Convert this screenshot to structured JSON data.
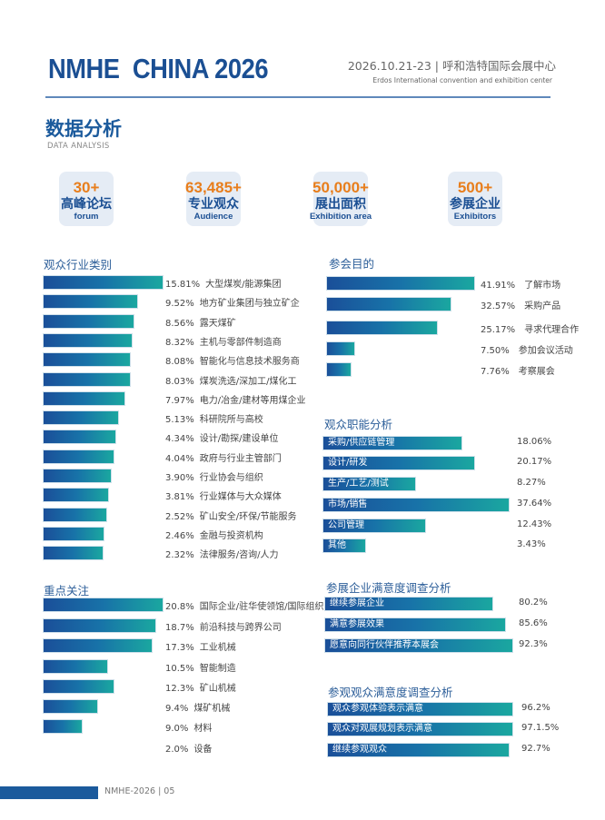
{
  "header": {
    "brand": "NMHE  CHINA 2026",
    "date_venue": "2026.10.21-23 | 呼和浩特国际会展中心",
    "venue_en": "Erdos International convention and exhibition center"
  },
  "section": {
    "title": "数据分析",
    "subtitle": "DATA ANALYSIS"
  },
  "stats": [
    {
      "value": "30+",
      "cn": "高峰论坛",
      "en": "forum",
      "icon": "podium-icon"
    },
    {
      "value": "63,485+",
      "cn": "专业观众",
      "en": "Audience",
      "icon": "people-icon"
    },
    {
      "value": "50,000+",
      "cn": "展出面积",
      "en": "Exhibition area",
      "icon": "floor-area-icon"
    },
    {
      "value": "500+",
      "cn": "参展企业",
      "en": "Exhibitors",
      "icon": "building-icon"
    }
  ],
  "industry": {
    "title": "观众行业类别",
    "items": [
      {
        "pct": "15.81%",
        "label": "大型煤炭/能源集团"
      },
      {
        "pct": "9.52%",
        "label": "地方矿业集团与独立矿企"
      },
      {
        "pct": "8.56%",
        "label": "露天煤矿"
      },
      {
        "pct": "8.32%",
        "label": "主机与零部件制造商"
      },
      {
        "pct": "8.08%",
        "label": "智能化与信息技术服务商"
      },
      {
        "pct": "8.03%",
        "label": "煤炭洗选/深加工/煤化工"
      },
      {
        "pct": "7.97%",
        "label": "电力/冶金/建材等用煤企业"
      },
      {
        "pct": "5.13%",
        "label": "科研院所与高校"
      },
      {
        "pct": "4.34%",
        "label": "设计/勘探/建设单位"
      },
      {
        "pct": "4.04%",
        "label": "政府与行业主管部门"
      },
      {
        "pct": "3.90%",
        "label": "行业协会与组织"
      },
      {
        "pct": "3.81%",
        "label": "行业媒体与大众媒体"
      },
      {
        "pct": "2.52%",
        "label": "矿山安全/环保/节能服务"
      },
      {
        "pct": "2.46%",
        "label": "金融与投资机构"
      },
      {
        "pct": "2.32%",
        "label": "法律服务/咨询/人力"
      }
    ]
  },
  "focus": {
    "title": "重点关注",
    "items": [
      {
        "pct": "20.8%",
        "label": "国际企业/驻华使领馆/国际组织"
      },
      {
        "pct": "18.7%",
        "label": "前沿科技与跨界公司"
      },
      {
        "pct": "17.3%",
        "label": "工业机械"
      },
      {
        "pct": "10.5%",
        "label": "智能制造"
      },
      {
        "pct": "12.3%",
        "label": "矿山机械"
      },
      {
        "pct": "9.4%",
        "label": "煤矿机械"
      },
      {
        "pct": "9.0%",
        "label": "材料"
      },
      {
        "pct": "2.0%",
        "label": "设备"
      }
    ]
  },
  "purpose": {
    "title": "参会目的",
    "items": [
      {
        "pct": "41.91%",
        "label": "了解市场"
      },
      {
        "pct": "32.57%",
        "label": "采购产品"
      },
      {
        "pct": "25.17%",
        "label": "寻求代理合作"
      },
      {
        "pct": "7.50%",
        "label": "参加会议活动"
      },
      {
        "pct": "7.76%",
        "label": "考察展会"
      }
    ]
  },
  "roles": {
    "title": "观众职能分析",
    "items": [
      {
        "pct": "18.06%",
        "label": "采购/供应链管理"
      },
      {
        "pct": "20.17%",
        "label": "设计/研发"
      },
      {
        "pct": "8.27%",
        "label": "生产/工艺/测试"
      },
      {
        "pct": "37.64%",
        "label": "市场/销售"
      },
      {
        "pct": "12.43%",
        "label": "公司管理"
      },
      {
        "pct": "3.43%",
        "label": "其他"
      }
    ]
  },
  "exhibitor_satisfaction": {
    "title": "参展企业满意度调查分析",
    "items": [
      {
        "pct": "80.2%",
        "label": "继续参展企业"
      },
      {
        "pct": "85.6%",
        "label": "满意参展效果"
      },
      {
        "pct": "92.3%",
        "label": "愿意向同行伙伴推荐本展会"
      }
    ]
  },
  "visitor_satisfaction": {
    "title": "参观观众满意度调查分析",
    "items": [
      {
        "pct": "96.2%",
        "label": "观众参观体验表示满意"
      },
      {
        "pct": "97.1.5%",
        "label": "观众对观展规划表示满意"
      },
      {
        "pct": "92.7%",
        "label": "继续参观观众"
      }
    ]
  },
  "footer": {
    "text": "NMHE-2026 | 05"
  },
  "colors": {
    "brand": "#1b4f93",
    "accent": "#e87e1c",
    "bar_start": "#1a4f99",
    "bar_end": "#1aa7a0"
  }
}
